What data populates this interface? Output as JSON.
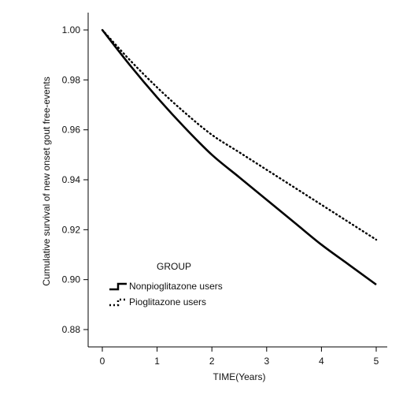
{
  "chart_data": {
    "type": "line",
    "title": "",
    "xlabel": "TIME(Years)",
    "ylabel": "Cumulative survival of new onset gout free-events",
    "xlim": [
      0,
      5
    ],
    "ylim": [
      0.88,
      1.0
    ],
    "xticks": [
      0,
      1,
      2,
      3,
      4,
      5
    ],
    "yticks": [
      0.88,
      0.9,
      0.92,
      0.94,
      0.96,
      0.98,
      1.0
    ],
    "ytick_labels": [
      "0.88",
      "0.90",
      "0.92",
      "0.94",
      "0.96",
      "0.98",
      "1.00"
    ],
    "grid": false,
    "legend": {
      "title": "GROUP",
      "placement": "bottom-left"
    },
    "series": [
      {
        "name": "Nonpioglitazone users",
        "style": "solid",
        "color": "#000000",
        "x": [
          0,
          0.5,
          1,
          1.5,
          2,
          2.5,
          3,
          3.5,
          4,
          4.5,
          5
        ],
        "y": [
          1.0,
          0.986,
          0.973,
          0.961,
          0.95,
          0.941,
          0.932,
          0.923,
          0.914,
          0.906,
          0.898
        ]
      },
      {
        "name": "Pioglitazone users",
        "style": "dotted",
        "color": "#000000",
        "x": [
          0,
          0.5,
          1,
          1.5,
          2,
          2.5,
          3,
          3.5,
          4,
          4.5,
          5
        ],
        "y": [
          1.0,
          0.988,
          0.977,
          0.967,
          0.958,
          0.951,
          0.944,
          0.937,
          0.93,
          0.923,
          0.916
        ]
      }
    ]
  }
}
